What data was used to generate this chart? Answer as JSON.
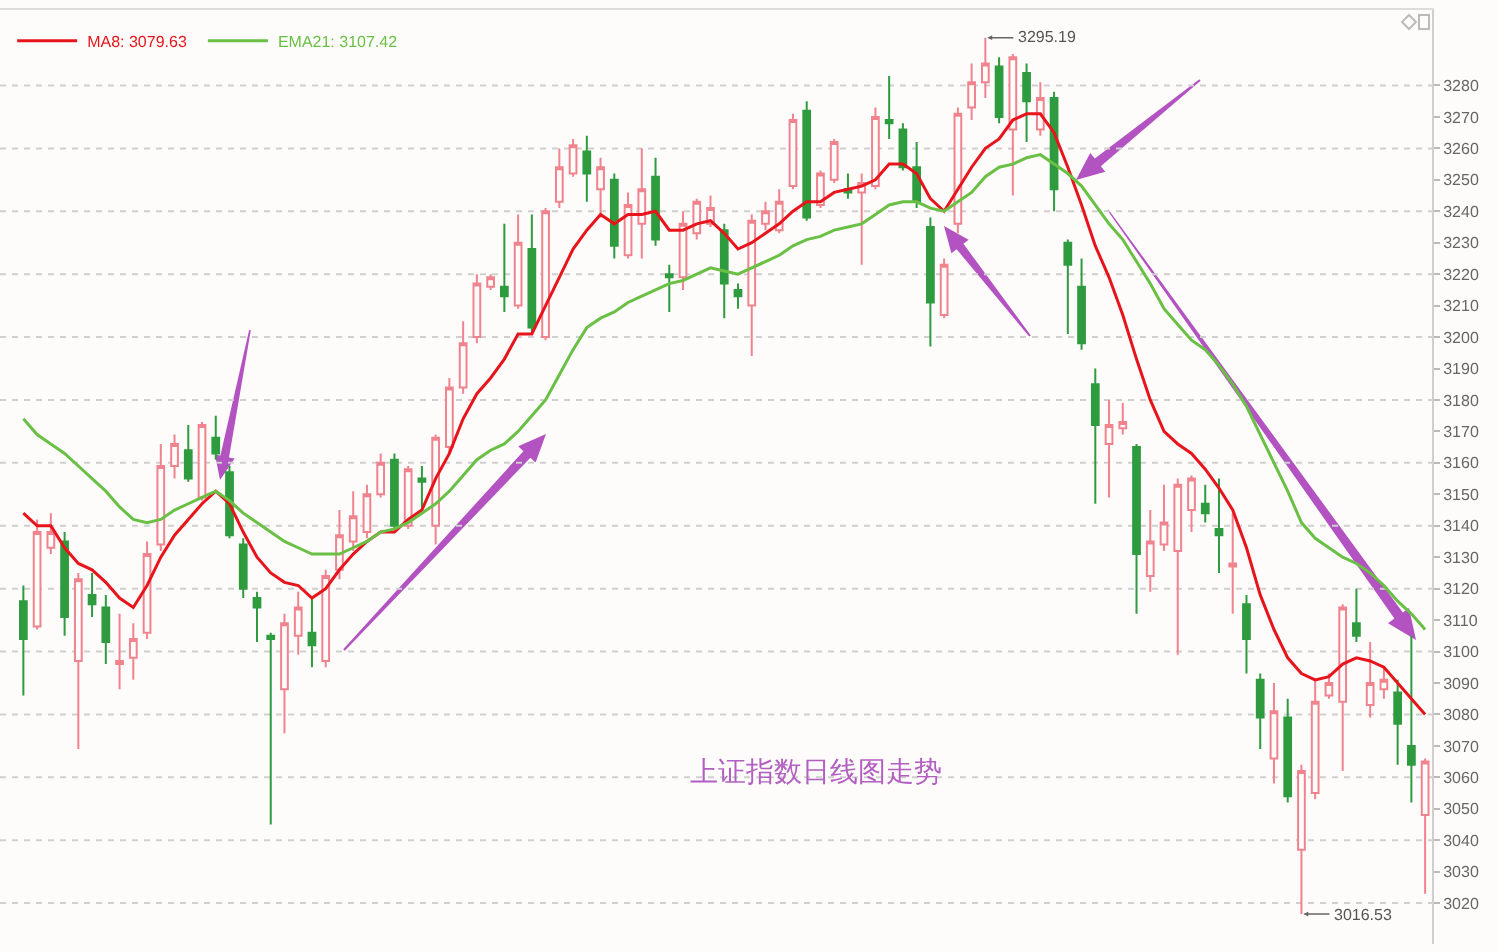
{
  "chart_data": {
    "type": "candlestick",
    "title": "上证指数日线图走势",
    "categories": [
      null,
      null,
      null,
      null,
      null,
      null,
      null,
      null,
      null,
      null,
      null,
      null,
      null,
      null,
      null,
      null,
      null,
      null,
      null,
      null,
      null,
      null,
      null,
      null,
      null,
      null,
      null,
      null,
      null,
      null,
      null,
      null,
      null,
      null,
      null,
      null,
      null,
      null,
      null,
      null,
      null,
      null,
      null,
      null,
      null,
      null,
      null,
      null,
      null,
      null,
      null,
      null,
      null,
      null,
      null,
      null,
      null,
      null,
      null,
      null,
      null,
      null,
      null,
      null,
      null,
      null,
      null,
      null,
      null,
      null,
      null,
      null,
      null,
      null,
      null,
      null,
      null,
      null,
      null,
      null,
      null,
      null,
      null,
      null,
      null,
      null,
      null,
      null,
      null,
      null,
      null,
      null,
      null,
      null,
      null,
      null,
      null,
      null,
      null,
      null,
      null,
      null,
      null
    ],
    "ohlc": [
      [
        3116,
        3121,
        3086,
        3104
      ],
      [
        3108,
        3142,
        3107,
        3138
      ],
      [
        3133,
        3144,
        3131,
        3138
      ],
      [
        3135,
        3138,
        3105,
        3111
      ],
      [
        3097,
        3125,
        3069,
        3123
      ],
      [
        3118,
        3125,
        3111,
        3115
      ],
      [
        3114,
        3118,
        3096,
        3103
      ],
      [
        3096,
        3112,
        3088,
        3097
      ],
      [
        3098,
        3109,
        3091,
        3104
      ],
      [
        3106,
        3135,
        3104,
        3131
      ],
      [
        3134,
        3166,
        3132,
        3159
      ],
      [
        3159,
        3169,
        3155,
        3166
      ],
      [
        3164,
        3172,
        3154,
        3155
      ],
      [
        3149,
        3173,
        3148,
        3172
      ],
      [
        3168,
        3175,
        3161,
        3163
      ],
      [
        3157,
        3159,
        3136,
        3137
      ],
      [
        3134,
        3136,
        3117,
        3120
      ],
      [
        3117,
        3119,
        3103,
        3114
      ],
      [
        3105,
        3106,
        3045,
        3104
      ],
      [
        3088,
        3112,
        3074,
        3109
      ],
      [
        3105,
        3119,
        3099,
        3114
      ],
      [
        3106,
        3117,
        3095,
        3102
      ],
      [
        3097,
        3126,
        3095,
        3124
      ],
      [
        3126,
        3145,
        3123,
        3137
      ],
      [
        3135,
        3151,
        3132,
        3143
      ],
      [
        3138,
        3153,
        3136,
        3150
      ],
      [
        3150,
        3163,
        3149,
        3160
      ],
      [
        3161,
        3163,
        3139,
        3140
      ],
      [
        3140,
        3159,
        3139,
        3158
      ],
      [
        3155,
        3159,
        3145,
        3154
      ],
      [
        3140,
        3169,
        3134,
        3168
      ],
      [
        3165,
        3187,
        3163,
        3184
      ],
      [
        3184,
        3205,
        3182,
        3198
      ],
      [
        3200,
        3220,
        3198,
        3217
      ],
      [
        3216,
        3220,
        3215,
        3219
      ],
      [
        3216,
        3236,
        3208,
        3213
      ],
      [
        3210,
        3239,
        3209,
        3230
      ],
      [
        3228,
        3239,
        3201,
        3203
      ],
      [
        3200,
        3241,
        3199,
        3240
      ],
      [
        3243,
        3260,
        3241,
        3254
      ],
      [
        3252,
        3263,
        3251,
        3261
      ],
      [
        3259,
        3264,
        3243,
        3252
      ],
      [
        3247,
        3257,
        3238,
        3254
      ],
      [
        3250,
        3252,
        3225,
        3229
      ],
      [
        3226,
        3246,
        3225,
        3242
      ],
      [
        3236,
        3260,
        3225,
        3247
      ],
      [
        3251,
        3257,
        3229,
        3231
      ],
      [
        3220,
        3223,
        3208,
        3219
      ],
      [
        3219,
        3240,
        3215,
        3236
      ],
      [
        3233,
        3244,
        3231,
        3243
      ],
      [
        3236,
        3245,
        3235,
        3241
      ],
      [
        3234,
        3236,
        3206,
        3217
      ],
      [
        3215,
        3217,
        3209,
        3213
      ],
      [
        3210,
        3239,
        3194,
        3237
      ],
      [
        3236,
        3243,
        3234,
        3240
      ],
      [
        3234,
        3247,
        3233,
        3243
      ],
      [
        3248,
        3271,
        3247,
        3269
      ],
      [
        3272,
        3275,
        3237,
        3238
      ],
      [
        3242,
        3253,
        3241,
        3252
      ],
      [
        3250,
        3263,
        3249,
        3262
      ],
      [
        3247,
        3252,
        3244,
        3246
      ],
      [
        3246,
        3252,
        3223,
        3249
      ],
      [
        3248,
        3273,
        3247,
        3270
      ],
      [
        3269,
        3283,
        3263,
        3268
      ],
      [
        3266,
        3268,
        3253,
        3254
      ],
      [
        3254,
        3262,
        3241,
        3243
      ],
      [
        3235,
        3238,
        3197,
        3211
      ],
      [
        3207,
        3225,
        3206,
        3223
      ],
      [
        3236,
        3273,
        3233,
        3271
      ],
      [
        3273,
        3287,
        3269,
        3281
      ],
      [
        3281,
        3295.19,
        3276,
        3287
      ],
      [
        3286,
        3289,
        3268,
        3270
      ],
      [
        3266,
        3290,
        3245,
        3289
      ],
      [
        3284,
        3287,
        3262,
        3275
      ],
      [
        3266,
        3281,
        3264,
        3276
      ],
      [
        3276,
        3278,
        3240,
        3247
      ],
      [
        3230,
        3231,
        3201,
        3223
      ],
      [
        3216,
        3225,
        3196,
        3198
      ],
      [
        3185,
        3190,
        3147,
        3172
      ],
      [
        3166,
        3180,
        3149,
        3172
      ],
      [
        3171,
        3179,
        3169,
        3173
      ],
      [
        3165,
        3166,
        3112,
        3131
      ],
      [
        3124,
        3145,
        3119,
        3135
      ],
      [
        3134,
        3153,
        3132,
        3141
      ],
      [
        3132,
        3155,
        3099,
        3153
      ],
      [
        3145,
        3156,
        3138,
        3155
      ],
      [
        3147,
        3153,
        3141,
        3144
      ],
      [
        3139,
        3155,
        3125,
        3137
      ],
      [
        3127,
        3144,
        3112,
        3128
      ],
      [
        3115,
        3118,
        3093,
        3104
      ],
      [
        3091,
        3093,
        3069,
        3079
      ],
      [
        3066,
        3090,
        3058,
        3081
      ],
      [
        3079,
        3085,
        3052,
        3054
      ],
      [
        3037,
        3064,
        3016.53,
        3062
      ],
      [
        3055,
        3091,
        3053,
        3084
      ],
      [
        3086,
        3093,
        3085,
        3090
      ],
      [
        3084,
        3115,
        3062,
        3114
      ],
      [
        3109,
        3120,
        3103,
        3105
      ],
      [
        3083,
        3103,
        3079,
        3090
      ],
      [
        3088,
        3095,
        3085,
        3091
      ],
      [
        3087,
        3091,
        3064,
        3077
      ],
      [
        3070,
        3105,
        3052,
        3064
      ],
      [
        3048,
        3066,
        3023,
        3065
      ]
    ],
    "colors": [
      "#2e9b3f",
      "#f0838e",
      "#f0838e",
      "#2e9b3f",
      "#f0838e",
      "#2e9b3f",
      "#2e9b3f",
      "#f0838e",
      "#f0838e",
      "#f0838e",
      "#f0838e",
      "#f0838e",
      "#2e9b3f",
      "#f0838e",
      "#2e9b3f",
      "#2e9b3f",
      "#2e9b3f",
      "#2e9b3f",
      "#2e9b3f",
      "#f0838e",
      "#f0838e",
      "#2e9b3f",
      "#f0838e",
      "#f0838e",
      "#f0838e",
      "#f0838e",
      "#f0838e",
      "#2e9b3f",
      "#f0838e",
      "#2e9b3f",
      "#f0838e",
      "#f0838e",
      "#f0838e",
      "#f0838e",
      "#f0838e",
      "#2e9b3f",
      "#f0838e",
      "#2e9b3f",
      "#f0838e",
      "#f0838e",
      "#f0838e",
      "#2e9b3f",
      "#f0838e",
      "#2e9b3f",
      "#f0838e",
      "#f0838e",
      "#2e9b3f",
      "#2e9b3f",
      "#f0838e",
      "#f0838e",
      "#f0838e",
      "#2e9b3f",
      "#2e9b3f",
      "#f0838e",
      "#f0838e",
      "#f0838e",
      "#f0838e",
      "#2e9b3f",
      "#f0838e",
      "#f0838e",
      "#2e9b3f",
      "#f0838e",
      "#f0838e",
      "#2e9b3f",
      "#2e9b3f",
      "#2e9b3f",
      "#2e9b3f",
      "#f0838e",
      "#f0838e",
      "#f0838e",
      "#f0838e",
      "#2e9b3f",
      "#f0838e",
      "#2e9b3f",
      "#f0838e",
      "#2e9b3f",
      "#2e9b3f",
      "#2e9b3f",
      "#2e9b3f",
      "#f0838e",
      "#f0838e",
      "#2e9b3f",
      "#f0838e",
      "#f0838e",
      "#f0838e",
      "#f0838e",
      "#2e9b3f",
      "#2e9b3f",
      "#f0838e",
      "#2e9b3f",
      "#2e9b3f",
      "#f0838e",
      "#2e9b3f",
      "#f0838e",
      "#f0838e",
      "#f0838e",
      "#f0838e",
      "#2e9b3f",
      "#f0838e",
      "#f0838e",
      "#2e9b3f",
      "#2e9b3f",
      "#f0838e"
    ],
    "series": [
      {
        "name": "MA8: 3079.63",
        "type": "line",
        "color": "#e8141c",
        "values": [
          3144,
          3140,
          3140,
          3133,
          3128,
          3126,
          3122,
          3117,
          3114,
          3121,
          3130,
          3137,
          3142,
          3147,
          3151,
          3147,
          3138,
          3130,
          3125,
          3122,
          3121,
          3117,
          3120,
          3126,
          3131,
          3135,
          3138,
          3138,
          3142,
          3145,
          3155,
          3163,
          3174,
          3182,
          3187,
          3193,
          3201,
          3201,
          3210,
          3219,
          3228,
          3234,
          3239,
          3236,
          3239,
          3239,
          3240,
          3234,
          3234,
          3236,
          3237,
          3233,
          3228,
          3230,
          3233,
          3236,
          3240,
          3243,
          3243,
          3246,
          3247,
          3248,
          3250,
          3255,
          3255,
          3252,
          3244,
          3240,
          3247,
          3254,
          3260,
          3263,
          3269,
          3271,
          3271,
          3265,
          3254,
          3242,
          3229,
          3219,
          3207,
          3193,
          3180,
          3170,
          3166,
          3163,
          3158,
          3152,
          3145,
          3133,
          3118,
          3107,
          3098,
          3093,
          3091,
          3092,
          3096,
          3098,
          3097,
          3095,
          3090,
          3085,
          3080
        ]
      },
      {
        "name": "EMA21: 3107.42",
        "type": "line",
        "color": "#6abf45",
        "values": [
          3174,
          3169,
          3166,
          3163,
          3159,
          3155,
          3151,
          3146,
          3142,
          3141,
          3142,
          3145,
          3147,
          3149,
          3151,
          3148,
          3144,
          3141,
          3138,
          3135,
          3133,
          3131,
          3131,
          3131,
          3133,
          3135,
          3138,
          3139,
          3141,
          3144,
          3147,
          3151,
          3156,
          3161,
          3164,
          3166,
          3170,
          3175,
          3180,
          3188,
          3196,
          3203,
          3206,
          3208,
          3211,
          3213,
          3215,
          3217,
          3218,
          3220,
          3222,
          3221,
          3220,
          3222,
          3224,
          3226,
          3229,
          3231,
          3232,
          3234,
          3235,
          3236,
          3239,
          3242,
          3243,
          3243,
          3241,
          3240,
          3243,
          3246,
          3251,
          3254,
          3255,
          3257,
          3258,
          3255,
          3252,
          3248,
          3242,
          3236,
          3231,
          3224,
          3217,
          3209,
          3204,
          3199,
          3196,
          3191,
          3185,
          3178,
          3169,
          3160,
          3151,
          3141,
          3136,
          3133,
          3130,
          3128,
          3125,
          3121,
          3116,
          3112,
          3107
        ]
      }
    ],
    "ylim": [
      3007,
      3304
    ],
    "yticks": [
      3020,
      3030,
      3040,
      3050,
      3060,
      3070,
      3080,
      3090,
      3100,
      3110,
      3120,
      3130,
      3140,
      3150,
      3160,
      3170,
      3180,
      3190,
      3200,
      3210,
      3220,
      3230,
      3240,
      3250,
      3260,
      3270,
      3280
    ],
    "grid": "y",
    "legend": "top left",
    "tick_labels": "y",
    "marker": "none",
    "annotations": [
      "3295.19",
      "3016.53"
    ]
  }
}
